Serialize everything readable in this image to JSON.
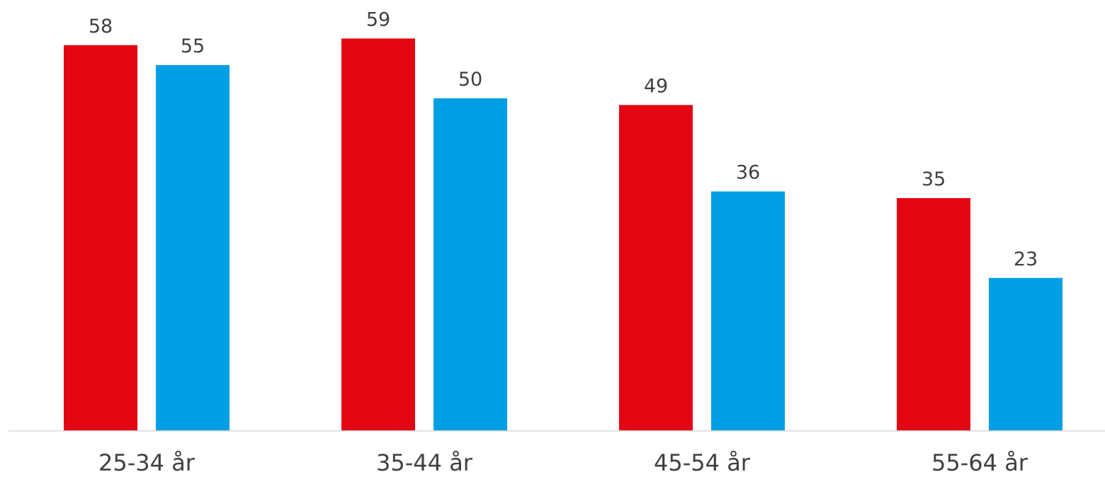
{
  "colors": {
    "series_a": "#e20613",
    "series_b": "#009fe3",
    "axis": "#d9d9d9",
    "label_text": "#404040"
  },
  "chart_data": {
    "type": "bar",
    "title": "",
    "xlabel": "",
    "ylabel": "",
    "categories": [
      "25-34 år",
      "35-44 år",
      "45-54 år",
      "55-64 år"
    ],
    "series": [
      {
        "values": [
          58,
          59,
          49,
          35
        ]
      },
      {
        "values": [
          55,
          50,
          36,
          23
        ]
      }
    ],
    "ylim": [
      0,
      63
    ],
    "grid": false,
    "legend": "none",
    "data_labels": true
  }
}
